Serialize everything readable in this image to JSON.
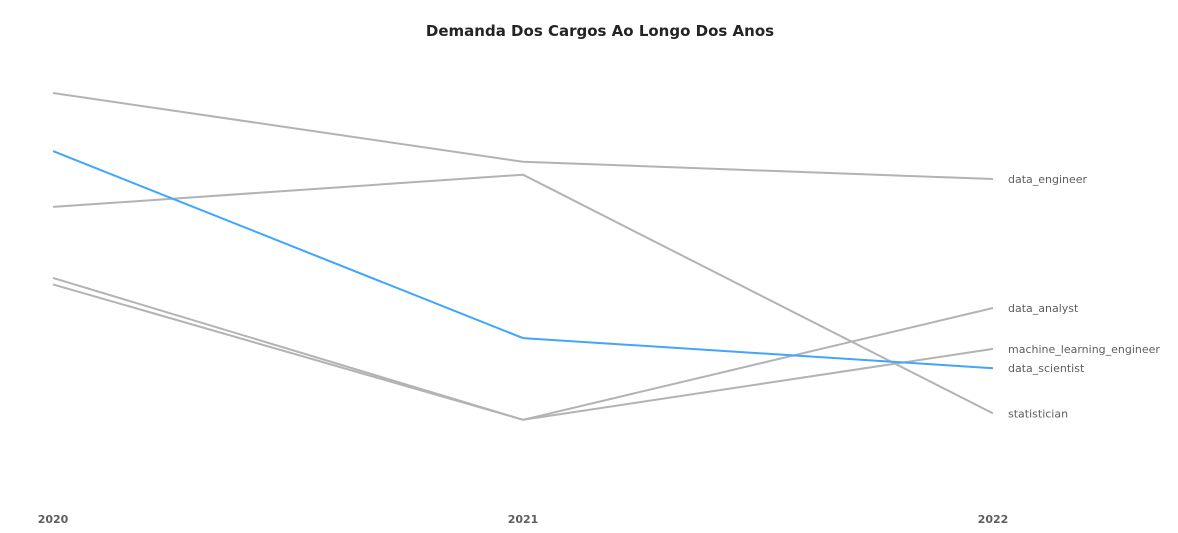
{
  "chart_data": {
    "type": "line",
    "title": "Demanda Dos Cargos Ao Longo Dos Anos",
    "x": [
      "2020",
      "2021",
      "2022"
    ],
    "y_domain": [
      0,
      100
    ],
    "series": [
      {
        "name": "data_engineer",
        "values": [
          90,
          74,
          70
        ],
        "color": "#B3B3B3"
      },
      {
        "name": "data_scientist",
        "values": [
          76.5,
          33,
          26
        ],
        "color": "#41A4FF"
      },
      {
        "name": "statistician",
        "values": [
          63.5,
          71,
          15.5
        ],
        "color": "#B3B3B3"
      },
      {
        "name": "data_analyst",
        "values": [
          45.5,
          14,
          40
        ],
        "color": "#B3B3B3"
      },
      {
        "name": "machine_learning_engineer",
        "values": [
          47,
          14,
          30.5
        ],
        "color": "#B3B3B3"
      }
    ]
  }
}
